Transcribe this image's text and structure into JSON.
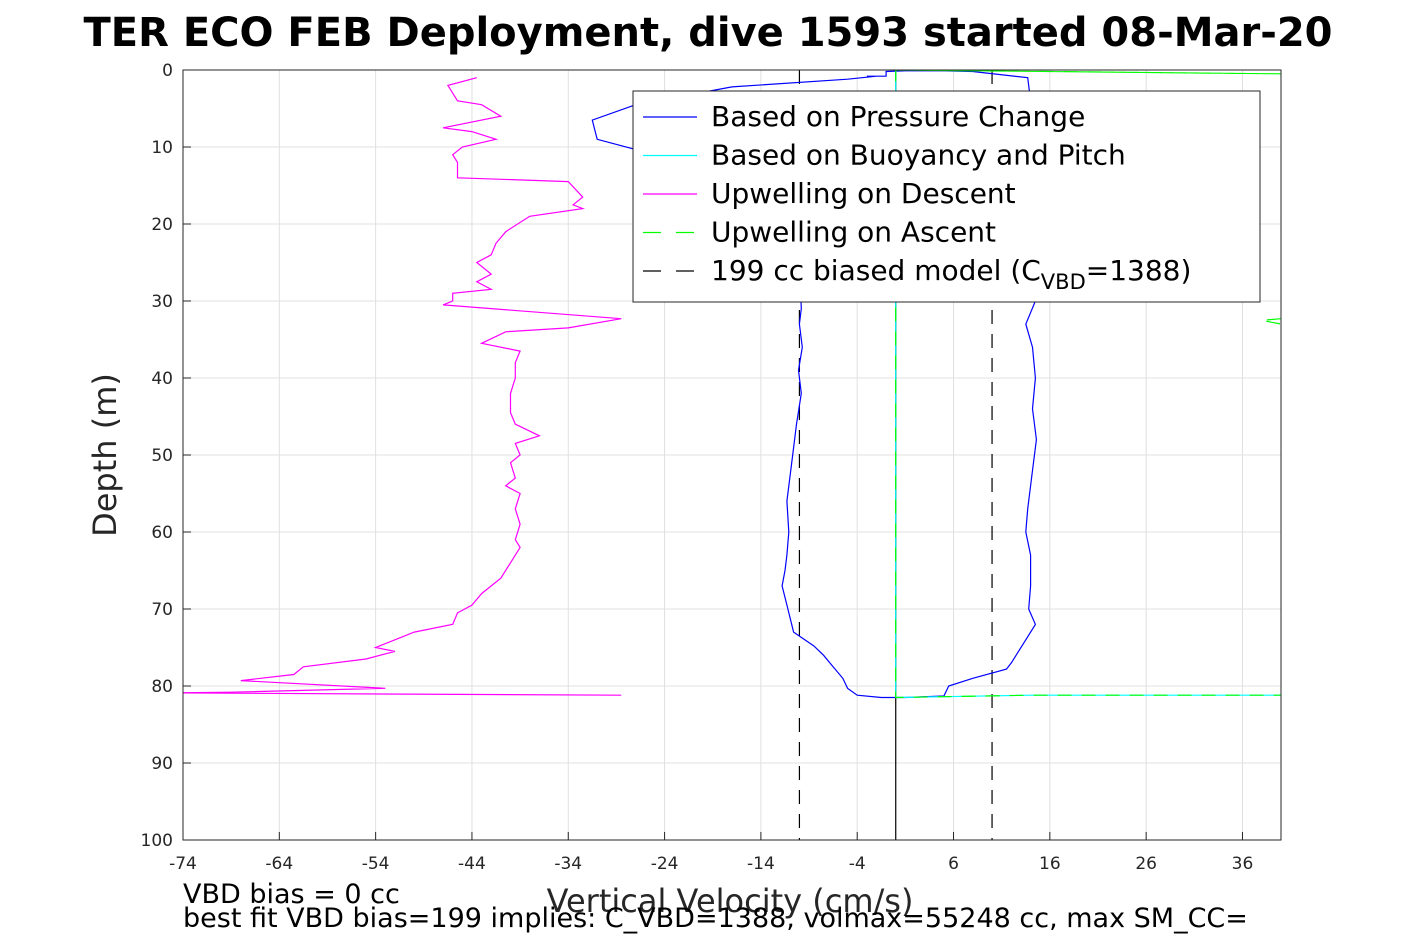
{
  "chart_data": {
    "type": "line",
    "title": "TER ECO FEB Deployment, dive 1593 started 08-Mar-20",
    "xlabel": "Vertical Velocity (cm/s)",
    "ylabel": "Depth (m)",
    "xlim": [
      -74,
      40
    ],
    "ylim": [
      0,
      100
    ],
    "y_reversed": true,
    "grid": true,
    "xticks": [
      -74,
      -64,
      -54,
      -44,
      -34,
      -24,
      -14,
      -4,
      6,
      16,
      26,
      36
    ],
    "yticks": [
      0,
      10,
      20,
      30,
      40,
      50,
      60,
      70,
      80,
      90,
      100
    ],
    "legend_location": "top-right",
    "legend": [
      {
        "label": "Based on Pressure Change",
        "color": "#0000ff",
        "dash": "solid"
      },
      {
        "label": "Based on Buoyancy and Pitch",
        "color": "#00ffff",
        "dash": "solid"
      },
      {
        "label": "Upwelling on Descent",
        "color": "#ff00ff",
        "dash": "solid"
      },
      {
        "label": "Upwelling on Ascent",
        "color": "#00ff00",
        "dash": "dashed"
      },
      {
        "label_main": "199 cc biased model (C",
        "label_sub": "VBD",
        "label_tail": "=1388)",
        "color": "#000000",
        "dash": "dashed"
      }
    ],
    "series": [
      {
        "name": "Based on Pressure Change",
        "color": "#0000ff",
        "dash": "solid",
        "points": [
          [
            -2,
            0.8
          ],
          [
            -5,
            1.2
          ],
          [
            -17,
            2.2
          ],
          [
            -27,
            4.5
          ],
          [
            -31.5,
            6.5
          ],
          [
            -31,
            9.0
          ],
          [
            -25,
            11.0
          ],
          [
            -12,
            14.0
          ],
          [
            -10,
            20.0
          ],
          [
            -10,
            25.0
          ],
          [
            -9.8,
            31.0
          ],
          [
            -10,
            33.0
          ],
          [
            -9.7,
            36.0
          ],
          [
            -10.1,
            39.0
          ],
          [
            -9.8,
            42.0
          ],
          [
            -10.3,
            46.0
          ],
          [
            -10.7,
            50.0
          ],
          [
            -11,
            53.0
          ],
          [
            -11.3,
            56.0
          ],
          [
            -11.1,
            60.0
          ],
          [
            -11.3,
            63.0
          ],
          [
            -11.5,
            65.0
          ],
          [
            -11.8,
            67.0
          ],
          [
            -11.2,
            70.0
          ],
          [
            -10.6,
            73.0
          ],
          [
            -8.5,
            74.8
          ],
          [
            -7.5,
            76.0
          ],
          [
            -6.5,
            77.5
          ],
          [
            -5.5,
            79.0
          ],
          [
            -5,
            80.3
          ],
          [
            -4,
            81.2
          ],
          [
            -1.5,
            81.5
          ],
          [
            1,
            81.5
          ],
          [
            5,
            81.3
          ],
          [
            5.5,
            80.0
          ],
          [
            8,
            79.0
          ],
          [
            11.5,
            77.8
          ],
          [
            12,
            77.0
          ],
          [
            13.5,
            74.0
          ],
          [
            14.5,
            72.0
          ],
          [
            13.8,
            70.0
          ],
          [
            14,
            67.0
          ],
          [
            14,
            63.0
          ],
          [
            13.5,
            60.0
          ],
          [
            13.7,
            57.0
          ],
          [
            14.2,
            52.0
          ],
          [
            14.6,
            48.0
          ],
          [
            14.2,
            44.0
          ],
          [
            14.5,
            40.0
          ],
          [
            14.2,
            36.0
          ],
          [
            13.5,
            33.0
          ],
          [
            14.5,
            30.0
          ],
          [
            14.8,
            26.0
          ],
          [
            15.2,
            22.0
          ],
          [
            15.5,
            18.0
          ],
          [
            15.2,
            14.0
          ],
          [
            14.8,
            10.0
          ],
          [
            14.6,
            6.0
          ],
          [
            14,
            4.0
          ],
          [
            13.7,
            1.0
          ],
          [
            8,
            0.2
          ],
          [
            5,
            0.1
          ],
          [
            1,
            0.1
          ],
          [
            -1,
            0.2
          ],
          [
            -1,
            0.8
          ],
          [
            -3,
            0.8
          ]
        ]
      },
      {
        "name": "Based on Buoyancy and Pitch",
        "color": "#00ffff",
        "dash": "solid",
        "points": [
          [
            0,
            0.0
          ],
          [
            0,
            81.5
          ],
          [
            14,
            81.2
          ],
          [
            40,
            81.2
          ]
        ]
      },
      {
        "name": "Upwelling on Descent",
        "color": "#ff00ff",
        "dash": "solid",
        "points": [
          [
            -43.5,
            1.0
          ],
          [
            -46.5,
            2.0
          ],
          [
            -45.5,
            4.0
          ],
          [
            -43,
            4.5
          ],
          [
            -41,
            6.0
          ],
          [
            -47,
            7.5
          ],
          [
            -44,
            8.0
          ],
          [
            -41.5,
            9.0
          ],
          [
            -45,
            10.0
          ],
          [
            -46,
            11.0
          ],
          [
            -45.5,
            12.0
          ],
          [
            -45.5,
            14.0
          ],
          [
            -34,
            14.5
          ],
          [
            -32.5,
            16.5
          ],
          [
            -33.5,
            17.5
          ],
          [
            -32.5,
            18.0
          ],
          [
            -38,
            19.0
          ],
          [
            -40.5,
            21.0
          ],
          [
            -41.5,
            22.5
          ],
          [
            -42,
            24.0
          ],
          [
            -43.5,
            25.0
          ],
          [
            -42,
            26.5
          ],
          [
            -43.5,
            27.5
          ],
          [
            -42,
            28.5
          ],
          [
            -46,
            29.0
          ],
          [
            -46,
            30.0
          ],
          [
            -47,
            30.5
          ],
          [
            -28.5,
            32.3
          ],
          [
            -34,
            33.5
          ],
          [
            -40.5,
            34.0
          ],
          [
            -43,
            35.5
          ],
          [
            -39,
            36.5
          ],
          [
            -39.5,
            38.0
          ],
          [
            -39.5,
            40.0
          ],
          [
            -40,
            42.0
          ],
          [
            -40,
            44.5
          ],
          [
            -39.5,
            46.0
          ],
          [
            -37,
            47.5
          ],
          [
            -39.5,
            48.5
          ],
          [
            -39,
            50.0
          ],
          [
            -40,
            51.0
          ],
          [
            -39.5,
            53.0
          ],
          [
            -40.5,
            54.0
          ],
          [
            -39,
            55.0
          ],
          [
            -39.5,
            57.0
          ],
          [
            -39,
            59.0
          ],
          [
            -39.5,
            61.0
          ],
          [
            -39,
            62.0
          ],
          [
            -40,
            64.0
          ],
          [
            -41,
            66.0
          ],
          [
            -42,
            67.0
          ],
          [
            -43,
            68.0
          ],
          [
            -44,
            69.5
          ],
          [
            -45.5,
            70.5
          ],
          [
            -46,
            72.0
          ],
          [
            -50,
            73.0
          ],
          [
            -54,
            75.0
          ],
          [
            -52,
            75.5
          ],
          [
            -55,
            76.5
          ],
          [
            -61.5,
            77.5
          ],
          [
            -62.5,
            78.5
          ],
          [
            -68,
            79.3
          ],
          [
            -53,
            80.3
          ],
          [
            -69,
            80.8
          ],
          [
            -75,
            80.9
          ],
          [
            -28.5,
            81.2
          ]
        ]
      },
      {
        "name": "Upwelling on Ascent",
        "color": "#00ff00",
        "dash": "dashed",
        "points": [
          [
            0,
            0.0
          ],
          [
            16,
            0.2
          ],
          [
            40,
            0.5
          ],
          [
            0,
            0.0
          ],
          [
            0,
            81.5
          ],
          [
            14,
            81.2
          ],
          [
            40,
            81.2
          ]
        ],
        "extra": [
          [
            [
              40,
              32.3
            ],
            [
              38,
              32.5
            ],
            [
              40,
              33.0
            ]
          ]
        ]
      }
    ],
    "model_lines": [
      {
        "x": -10,
        "color": "#000000",
        "dash": "dashed"
      },
      {
        "x": 10,
        "color": "#000000",
        "dash": "dashed"
      },
      {
        "x": 0,
        "color": "#000000",
        "dash": "solid"
      }
    ]
  },
  "footer": {
    "line1": "VBD bias = 0 cc",
    "line2": "best fit VBD bias=199 implies: C_VBD=1388, volmax=55248 cc, max SM_CC="
  }
}
